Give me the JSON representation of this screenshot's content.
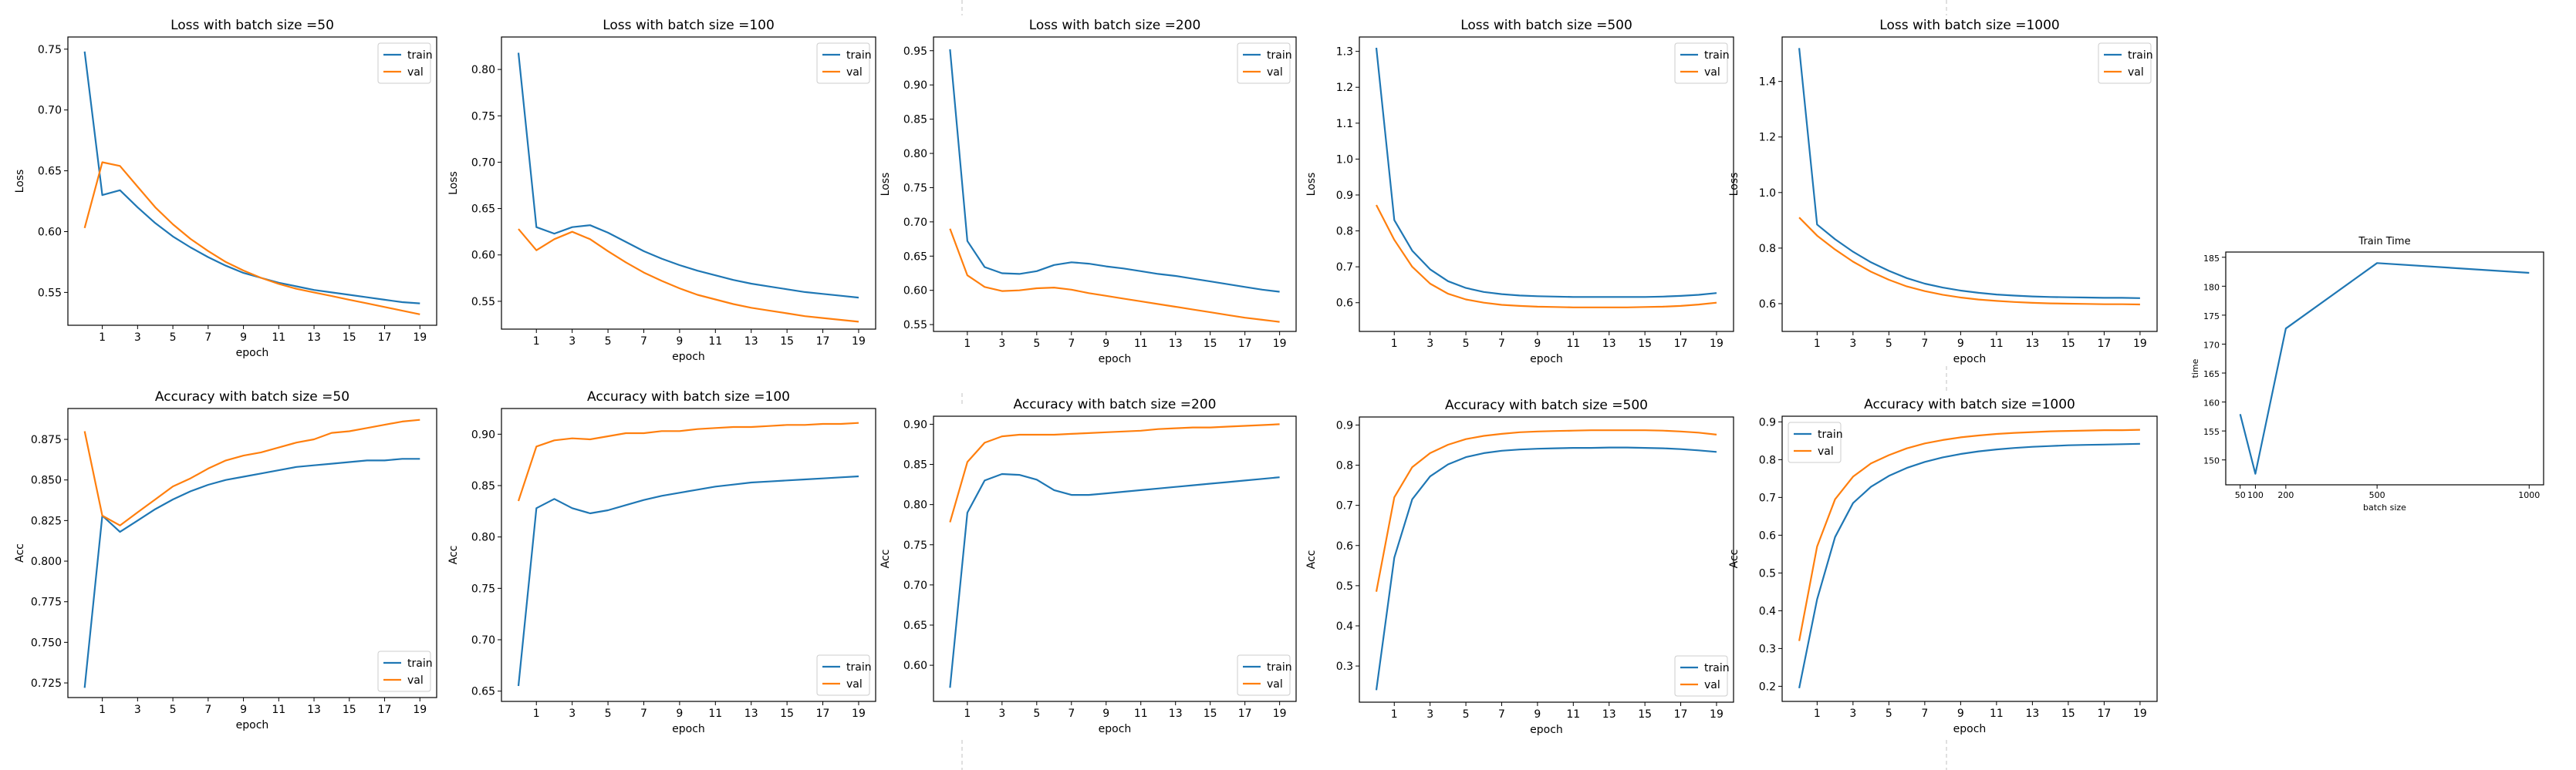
{
  "colors": {
    "train": "#1f77b4",
    "val": "#ff7f0e",
    "axes": "#000000",
    "background": "#ffffff",
    "separator": "#cccccc"
  },
  "legend_labels": [
    "train",
    "val"
  ],
  "chart_data": [
    {
      "type": "line",
      "title": "Loss with batch size =50",
      "xlabel": "epoch",
      "ylabel": "Loss",
      "x": [
        0,
        1,
        2,
        3,
        4,
        5,
        6,
        7,
        8,
        9,
        10,
        11,
        12,
        13,
        14,
        15,
        16,
        17,
        18,
        19
      ],
      "xticks": [
        1,
        3,
        5,
        7,
        9,
        11,
        13,
        15,
        17,
        19
      ],
      "ylim": [
        0.523,
        0.76
      ],
      "yticks": [
        0.55,
        0.6,
        0.65,
        0.7,
        0.75
      ],
      "ytick_labels": [
        "0.55",
        "0.60",
        "0.65",
        "0.70",
        "0.75"
      ],
      "legend": "upper right",
      "series": [
        {
          "name": "train",
          "values": [
            0.748,
            0.63,
            0.634,
            0.62,
            0.607,
            0.596,
            0.587,
            0.579,
            0.572,
            0.566,
            0.562,
            0.558,
            0.555,
            0.552,
            0.55,
            0.548,
            0.546,
            0.544,
            0.542,
            0.541
          ]
        },
        {
          "name": "val",
          "values": [
            0.603,
            0.657,
            0.654,
            0.637,
            0.62,
            0.606,
            0.594,
            0.584,
            0.575,
            0.568,
            0.562,
            0.557,
            0.553,
            0.55,
            0.547,
            0.544,
            0.541,
            0.538,
            0.535,
            0.532
          ]
        }
      ]
    },
    {
      "type": "line",
      "title": "Loss with batch size =100",
      "xlabel": "epoch",
      "ylabel": "Loss",
      "x": [
        0,
        1,
        2,
        3,
        4,
        5,
        6,
        7,
        8,
        9,
        10,
        11,
        12,
        13,
        14,
        15,
        16,
        17,
        18,
        19
      ],
      "xticks": [
        1,
        3,
        5,
        7,
        9,
        11,
        13,
        15,
        17,
        19
      ],
      "ylim": [
        0.52,
        0.835
      ],
      "yticks": [
        0.55,
        0.6,
        0.65,
        0.7,
        0.75,
        0.8
      ],
      "ytick_labels": [
        "0.55",
        "0.60",
        "0.65",
        "0.70",
        "0.75",
        "0.80"
      ],
      "legend": "upper right",
      "series": [
        {
          "name": "train",
          "values": [
            0.818,
            0.63,
            0.623,
            0.63,
            0.632,
            0.624,
            0.614,
            0.604,
            0.596,
            0.589,
            0.583,
            0.578,
            0.573,
            0.569,
            0.566,
            0.563,
            0.56,
            0.558,
            0.556,
            0.554
          ]
        },
        {
          "name": "val",
          "values": [
            0.628,
            0.605,
            0.617,
            0.625,
            0.617,
            0.604,
            0.592,
            0.581,
            0.572,
            0.564,
            0.557,
            0.552,
            0.547,
            0.543,
            0.54,
            0.537,
            0.534,
            0.532,
            0.53,
            0.528
          ]
        }
      ]
    },
    {
      "type": "line",
      "title": "Loss with batch size =200",
      "xlabel": "epoch",
      "ylabel": "Loss",
      "x": [
        0,
        1,
        2,
        3,
        4,
        5,
        6,
        7,
        8,
        9,
        10,
        11,
        12,
        13,
        14,
        15,
        16,
        17,
        18,
        19
      ],
      "xticks": [
        1,
        3,
        5,
        7,
        9,
        11,
        13,
        15,
        17,
        19
      ],
      "ylim": [
        0.54,
        0.97
      ],
      "yticks": [
        0.55,
        0.6,
        0.65,
        0.7,
        0.75,
        0.8,
        0.85,
        0.9,
        0.95
      ],
      "ytick_labels": [
        "0.55",
        "0.60",
        "0.65",
        "0.70",
        "0.75",
        "0.80",
        "0.85",
        "0.90",
        "0.95"
      ],
      "legend": "upper right",
      "series": [
        {
          "name": "train",
          "values": [
            0.952,
            0.672,
            0.634,
            0.625,
            0.624,
            0.628,
            0.637,
            0.641,
            0.639,
            0.635,
            0.632,
            0.628,
            0.624,
            0.621,
            0.617,
            0.613,
            0.609,
            0.605,
            0.601,
            0.598
          ]
        },
        {
          "name": "val",
          "values": [
            0.69,
            0.622,
            0.605,
            0.599,
            0.6,
            0.603,
            0.604,
            0.601,
            0.596,
            0.592,
            0.588,
            0.584,
            0.58,
            0.576,
            0.572,
            0.568,
            0.564,
            0.56,
            0.557,
            0.554
          ]
        }
      ]
    },
    {
      "type": "line",
      "title": "Loss with batch size =500",
      "xlabel": "epoch",
      "ylabel": "Loss",
      "x": [
        0,
        1,
        2,
        3,
        4,
        5,
        6,
        7,
        8,
        9,
        10,
        11,
        12,
        13,
        14,
        15,
        16,
        17,
        18,
        19
      ],
      "xticks": [
        1,
        3,
        5,
        7,
        9,
        11,
        13,
        15,
        17,
        19
      ],
      "ylim": [
        0.52,
        1.34
      ],
      "yticks": [
        0.6,
        0.7,
        0.8,
        0.9,
        1.0,
        1.1,
        1.2,
        1.3
      ],
      "ytick_labels": [
        "0.6",
        "0.7",
        "0.8",
        "0.9",
        "1.0",
        "1.1",
        "1.2",
        "1.3"
      ],
      "legend": "upper right",
      "series": [
        {
          "name": "train",
          "values": [
            1.31,
            0.83,
            0.745,
            0.693,
            0.66,
            0.641,
            0.63,
            0.624,
            0.62,
            0.618,
            0.617,
            0.616,
            0.616,
            0.616,
            0.616,
            0.616,
            0.617,
            0.619,
            0.622,
            0.627
          ]
        },
        {
          "name": "val",
          "values": [
            0.872,
            0.775,
            0.7,
            0.653,
            0.625,
            0.609,
            0.6,
            0.594,
            0.591,
            0.589,
            0.588,
            0.587,
            0.587,
            0.587,
            0.587,
            0.588,
            0.589,
            0.591,
            0.595,
            0.6
          ]
        }
      ]
    },
    {
      "type": "line",
      "title": "Loss with batch size =1000",
      "xlabel": "epoch",
      "ylabel": "Loss",
      "x": [
        0,
        1,
        2,
        3,
        4,
        5,
        6,
        7,
        8,
        9,
        10,
        11,
        12,
        13,
        14,
        15,
        16,
        17,
        18,
        19
      ],
      "xticks": [
        1,
        3,
        5,
        7,
        9,
        11,
        13,
        15,
        17,
        19
      ],
      "ylim": [
        0.5,
        1.56
      ],
      "yticks": [
        0.6,
        0.8,
        1.0,
        1.2,
        1.4
      ],
      "ytick_labels": [
        "0.6",
        "0.8",
        "1.0",
        "1.2",
        "1.4"
      ],
      "legend": "upper right",
      "series": [
        {
          "name": "train",
          "values": [
            1.52,
            0.885,
            0.832,
            0.787,
            0.749,
            0.718,
            0.692,
            0.672,
            0.658,
            0.647,
            0.639,
            0.633,
            0.629,
            0.626,
            0.624,
            0.623,
            0.622,
            0.621,
            0.621,
            0.62
          ]
        },
        {
          "name": "val",
          "values": [
            0.91,
            0.845,
            0.795,
            0.751,
            0.715,
            0.686,
            0.662,
            0.645,
            0.632,
            0.622,
            0.615,
            0.61,
            0.606,
            0.603,
            0.601,
            0.6,
            0.599,
            0.598,
            0.598,
            0.597
          ]
        }
      ]
    },
    {
      "type": "line",
      "title": "Accuracy with batch size =50",
      "xlabel": "epoch",
      "ylabel": "Acc",
      "x": [
        0,
        1,
        2,
        3,
        4,
        5,
        6,
        7,
        8,
        9,
        10,
        11,
        12,
        13,
        14,
        15,
        16,
        17,
        18,
        19
      ],
      "xticks": [
        1,
        3,
        5,
        7,
        9,
        11,
        13,
        15,
        17,
        19
      ],
      "ylim": [
        0.716,
        0.894
      ],
      "yticks": [
        0.725,
        0.75,
        0.775,
        0.8,
        0.825,
        0.85,
        0.875
      ],
      "ytick_labels": [
        "0.725",
        "0.750",
        "0.775",
        "0.800",
        "0.825",
        "0.850",
        "0.875"
      ],
      "legend": "lower right",
      "series": [
        {
          "name": "train",
          "values": [
            0.722,
            0.828,
            0.818,
            0.825,
            0.832,
            0.838,
            0.843,
            0.847,
            0.85,
            0.852,
            0.854,
            0.856,
            0.858,
            0.859,
            0.86,
            0.861,
            0.862,
            0.862,
            0.863,
            0.863
          ]
        },
        {
          "name": "val",
          "values": [
            0.88,
            0.828,
            0.822,
            0.83,
            0.838,
            0.846,
            0.851,
            0.857,
            0.862,
            0.865,
            0.867,
            0.87,
            0.873,
            0.875,
            0.879,
            0.88,
            0.882,
            0.884,
            0.886,
            0.887
          ]
        }
      ]
    },
    {
      "type": "line",
      "title": "Accuracy with batch size =100",
      "xlabel": "epoch",
      "ylabel": "Acc",
      "x": [
        0,
        1,
        2,
        3,
        4,
        5,
        6,
        7,
        8,
        9,
        10,
        11,
        12,
        13,
        14,
        15,
        16,
        17,
        18,
        19
      ],
      "xticks": [
        1,
        3,
        5,
        7,
        9,
        11,
        13,
        15,
        17,
        19
      ],
      "ylim": [
        0.64,
        0.925
      ],
      "yticks": [
        0.65,
        0.7,
        0.75,
        0.8,
        0.85,
        0.9
      ],
      "ytick_labels": [
        "0.65",
        "0.70",
        "0.75",
        "0.80",
        "0.85",
        "0.90"
      ],
      "legend": "lower right",
      "series": [
        {
          "name": "train",
          "values": [
            0.655,
            0.828,
            0.837,
            0.828,
            0.823,
            0.826,
            0.831,
            0.836,
            0.84,
            0.843,
            0.846,
            0.849,
            0.851,
            0.853,
            0.854,
            0.855,
            0.856,
            0.857,
            0.858,
            0.859
          ]
        },
        {
          "name": "val",
          "values": [
            0.835,
            0.888,
            0.894,
            0.896,
            0.895,
            0.898,
            0.901,
            0.901,
            0.903,
            0.903,
            0.905,
            0.906,
            0.907,
            0.907,
            0.908,
            0.909,
            0.909,
            0.91,
            0.91,
            0.911
          ]
        }
      ]
    },
    {
      "type": "line",
      "title": "Accuracy with batch size =200",
      "xlabel": "epoch",
      "ylabel": "Acc",
      "x": [
        0,
        1,
        2,
        3,
        4,
        5,
        6,
        7,
        8,
        9,
        10,
        11,
        12,
        13,
        14,
        15,
        16,
        17,
        18,
        19
      ],
      "xticks": [
        1,
        3,
        5,
        7,
        9,
        11,
        13,
        15,
        17,
        19
      ],
      "ylim": [
        0.555,
        0.91
      ],
      "yticks": [
        0.6,
        0.65,
        0.7,
        0.75,
        0.8,
        0.85,
        0.9
      ],
      "ytick_labels": [
        "0.60",
        "0.65",
        "0.70",
        "0.75",
        "0.80",
        "0.85",
        "0.90"
      ],
      "legend": "lower right",
      "series": [
        {
          "name": "train",
          "values": [
            0.572,
            0.79,
            0.83,
            0.838,
            0.837,
            0.831,
            0.818,
            0.812,
            0.812,
            0.814,
            0.816,
            0.818,
            0.82,
            0.822,
            0.824,
            0.826,
            0.828,
            0.83,
            0.832,
            0.834
          ]
        },
        {
          "name": "val",
          "values": [
            0.778,
            0.853,
            0.877,
            0.885,
            0.887,
            0.887,
            0.887,
            0.888,
            0.889,
            0.89,
            0.891,
            0.892,
            0.894,
            0.895,
            0.896,
            0.896,
            0.897,
            0.898,
            0.899,
            0.9
          ]
        }
      ]
    },
    {
      "type": "line",
      "title": "Accuracy with batch size =500",
      "xlabel": "epoch",
      "ylabel": "Acc",
      "x": [
        0,
        1,
        2,
        3,
        4,
        5,
        6,
        7,
        8,
        9,
        10,
        11,
        12,
        13,
        14,
        15,
        16,
        17,
        18,
        19
      ],
      "xticks": [
        1,
        3,
        5,
        7,
        9,
        11,
        13,
        15,
        17,
        19
      ],
      "ylim": [
        0.21,
        0.92
      ],
      "yticks": [
        0.3,
        0.4,
        0.5,
        0.6,
        0.7,
        0.8,
        0.9
      ],
      "ytick_labels": [
        "0.3",
        "0.4",
        "0.5",
        "0.6",
        "0.7",
        "0.8",
        "0.9"
      ],
      "legend": "lower right",
      "series": [
        {
          "name": "train",
          "values": [
            0.24,
            0.57,
            0.715,
            0.772,
            0.802,
            0.82,
            0.83,
            0.836,
            0.839,
            0.841,
            0.842,
            0.843,
            0.843,
            0.844,
            0.844,
            0.843,
            0.842,
            0.84,
            0.837,
            0.833
          ]
        },
        {
          "name": "val",
          "values": [
            0.485,
            0.72,
            0.795,
            0.83,
            0.851,
            0.865,
            0.873,
            0.878,
            0.882,
            0.884,
            0.885,
            0.886,
            0.887,
            0.887,
            0.887,
            0.887,
            0.886,
            0.884,
            0.881,
            0.876
          ]
        }
      ]
    },
    {
      "type": "line",
      "title": "Accuracy with batch size =1000",
      "xlabel": "epoch",
      "ylabel": "Acc",
      "x": [
        0,
        1,
        2,
        3,
        4,
        5,
        6,
        7,
        8,
        9,
        10,
        11,
        12,
        13,
        14,
        15,
        16,
        17,
        18,
        19
      ],
      "xticks": [
        1,
        3,
        5,
        7,
        9,
        11,
        13,
        15,
        17,
        19
      ],
      "ylim": [
        0.16,
        0.915
      ],
      "yticks": [
        0.2,
        0.3,
        0.4,
        0.5,
        0.6,
        0.7,
        0.8,
        0.9
      ],
      "ytick_labels": [
        "0.2",
        "0.3",
        "0.4",
        "0.5",
        "0.6",
        "0.7",
        "0.8",
        "0.9"
      ],
      "legend": "upper left",
      "series": [
        {
          "name": "train",
          "values": [
            0.195,
            0.43,
            0.595,
            0.685,
            0.728,
            0.757,
            0.778,
            0.794,
            0.806,
            0.815,
            0.822,
            0.827,
            0.831,
            0.834,
            0.836,
            0.838,
            0.839,
            0.84,
            0.841,
            0.842
          ]
        },
        {
          "name": "val",
          "values": [
            0.32,
            0.57,
            0.695,
            0.755,
            0.79,
            0.812,
            0.83,
            0.843,
            0.852,
            0.859,
            0.864,
            0.868,
            0.871,
            0.873,
            0.875,
            0.876,
            0.877,
            0.878,
            0.878,
            0.879
          ]
        }
      ]
    },
    {
      "type": "line",
      "title": "Train Time",
      "xlabel": "batch size",
      "ylabel": "time",
      "x": [
        50,
        100,
        200,
        500,
        1000
      ],
      "xticks": [
        50,
        100,
        200,
        500,
        1000
      ],
      "xlim": [
        2.5,
        1047.5
      ],
      "ylim": [
        145.7,
        185.9
      ],
      "yticks": [
        150,
        155,
        160,
        165,
        170,
        175,
        180,
        185
      ],
      "ytick_labels": [
        "150",
        "155",
        "160",
        "165",
        "170",
        "175",
        "180",
        "185"
      ],
      "legend": "none",
      "series": [
        {
          "values": [
            157.9,
            147.6,
            172.7,
            184.0,
            182.3
          ]
        }
      ]
    }
  ]
}
